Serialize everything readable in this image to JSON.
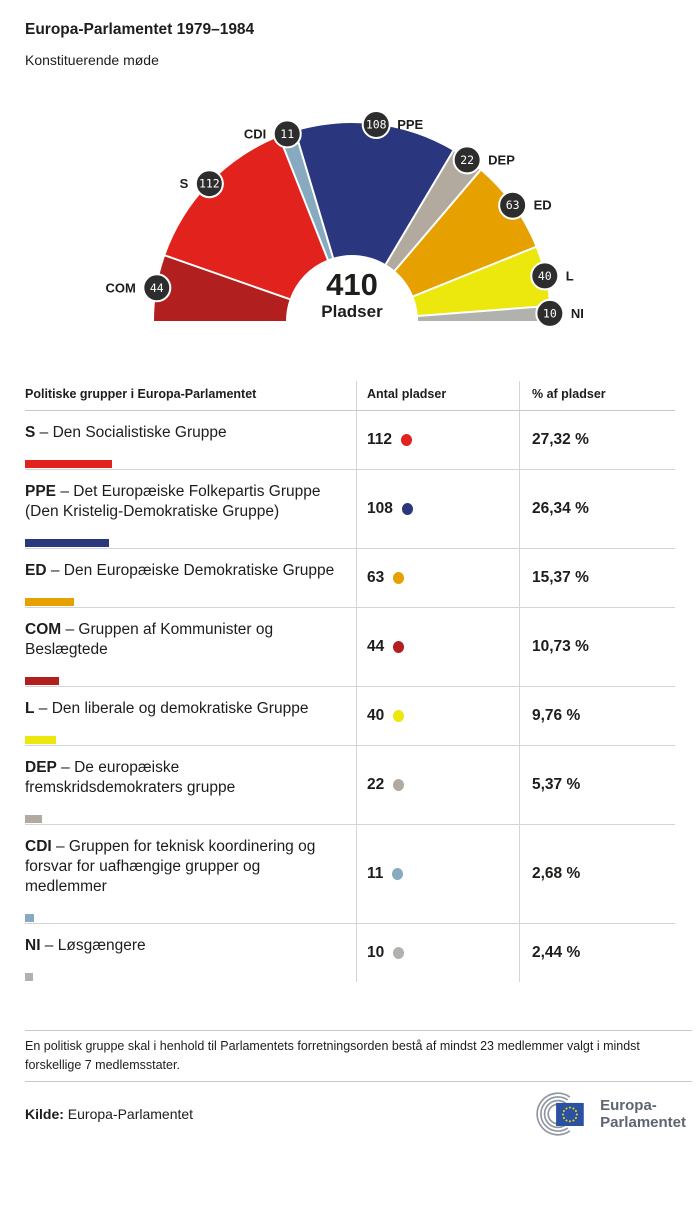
{
  "header": {
    "title": "Europa-Parlamentet 1979–1984",
    "subtitle": "Konstituerende møde"
  },
  "chart_data": {
    "type": "pie",
    "variant": "hemicycle-semicircle",
    "title": "Europa-Parlamentet 1979–1984",
    "center_total": "410",
    "center_label": "Pladser",
    "total_seats": 410,
    "legend_position": "labels-around-arc",
    "series": [
      {
        "label": "COM",
        "value": 44,
        "color": "#b21f1f"
      },
      {
        "label": "S",
        "value": 112,
        "color": "#e2231d"
      },
      {
        "label": "CDI",
        "value": 11,
        "color": "#87aac1"
      },
      {
        "label": "PPE",
        "value": 108,
        "color": "#2a377f"
      },
      {
        "label": "DEP",
        "value": 22,
        "color": "#b2aa9e"
      },
      {
        "label": "ED",
        "value": 63,
        "color": "#e6a000"
      },
      {
        "label": "L",
        "value": 40,
        "color": "#ece70c"
      },
      {
        "label": "NI",
        "value": 10,
        "color": "#b1b1ae"
      }
    ]
  },
  "table": {
    "headers": [
      "Politiske grupper i Europa-Parlamentet",
      "Antal pladser",
      "% af pladser"
    ],
    "separator": "–",
    "rows": [
      {
        "abbr": "S",
        "name": "Den Socialistiske Gruppe",
        "seats": 112,
        "pct": "27,32 %",
        "color": "#e2231d",
        "bar": 87
      },
      {
        "abbr": "PPE",
        "name": "Det Europæiske Folkepartis Gruppe (Den Kristelig-Demokratiske Gruppe)",
        "seats": 108,
        "pct": "26,34 %",
        "color": "#2a377f",
        "bar": 84
      },
      {
        "abbr": "ED",
        "name": "Den Europæiske Demokratiske Gruppe",
        "seats": 63,
        "pct": "15,37 %",
        "color": "#e6a000",
        "bar": 49
      },
      {
        "abbr": "COM",
        "name": "Gruppen af Kommunister og Beslægtede",
        "seats": 44,
        "pct": "10,73 %",
        "color": "#b21f1f",
        "bar": 34
      },
      {
        "abbr": "L",
        "name": "Den liberale og demokratiske Gruppe",
        "seats": 40,
        "pct": "9,76 %",
        "color": "#ece70c",
        "bar": 31
      },
      {
        "abbr": "DEP",
        "name": "De europæiske fremskridsdemokraters gruppe",
        "seats": 22,
        "pct": "5,37 %",
        "color": "#b2aa9e",
        "bar": 17
      },
      {
        "abbr": "CDI",
        "name": "Gruppen for teknisk koordinering og forsvar for uafhængige grupper og medlemmer",
        "seats": 11,
        "pct": "2,68 %",
        "color": "#87aac1",
        "bar": 9
      },
      {
        "abbr": "NI",
        "name": "Løsgængere",
        "seats": 10,
        "pct": "2,44 %",
        "color": "#b1b1ae",
        "bar": 8
      }
    ]
  },
  "footer": {
    "note": "En politisk gruppe skal i henhold til Parlamentets forretningsorden bestå af mindst 23 medlemmer valgt i mindst forskellige 7 medlemsstater.",
    "source_label": "Kilde:",
    "source": "Europa-Parlamentet",
    "logo_text_line1": "Europa-",
    "logo_text_line2": "Parlamentet"
  },
  "style": {
    "badge_fill": "#2d2d2d",
    "badge_text": "#ffffff",
    "eu_blue": "#2a52a0",
    "eu_star_yellow": "#f8d718",
    "logo_arc_gray": "#9097a0"
  }
}
